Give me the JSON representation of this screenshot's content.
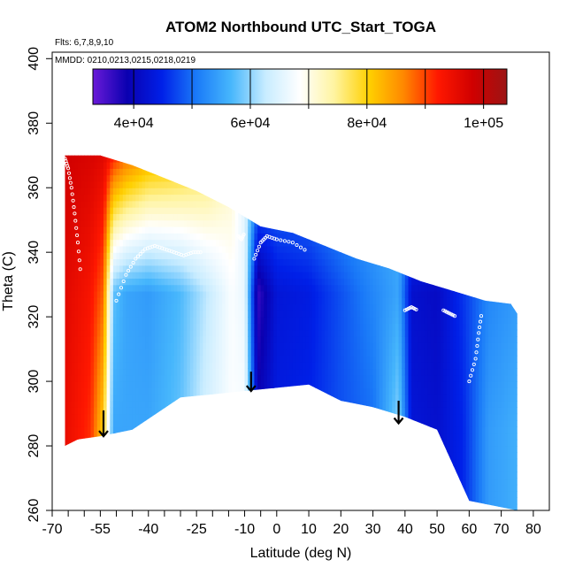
{
  "chart_data": {
    "type": "heatmap",
    "title": "ATOM2 Northbound UTC_Start_TOGA",
    "flights_note": "Flts: 6,7,8,9,10",
    "dates_note": "MMDD: 0210,0213,0215,0218,0219",
    "xlabel": "Latitude (deg N)",
    "ylabel": "Theta (C)",
    "xlim": [
      -70,
      85
    ],
    "ylim": [
      260,
      402
    ],
    "x_ticks": [
      {
        "value": -70,
        "label": "-70"
      },
      {
        "value": -55,
        "label": "-55"
      },
      {
        "value": -40,
        "label": "-40"
      },
      {
        "value": -25,
        "label": "-25"
      },
      {
        "value": -10,
        "label": "-10"
      },
      {
        "value": 0,
        "label": "0"
      },
      {
        "value": 10,
        "label": "10"
      },
      {
        "value": 20,
        "label": "20"
      },
      {
        "value": 30,
        "label": "30"
      },
      {
        "value": 40,
        "label": "40"
      },
      {
        "value": 50,
        "label": "50"
      },
      {
        "value": 60,
        "label": "60"
      },
      {
        "value": 70,
        "label": "70"
      },
      {
        "value": 80,
        "label": "80"
      }
    ],
    "x_minor_ticks": [
      -65,
      -60,
      -50,
      -45,
      -35,
      -30,
      -20,
      -15,
      -5
    ],
    "y_ticks": [
      {
        "value": 260,
        "label": "260"
      },
      {
        "value": 280,
        "label": "280"
      },
      {
        "value": 300,
        "label": "300"
      },
      {
        "value": 320,
        "label": "320"
      },
      {
        "value": 340,
        "label": "340"
      },
      {
        "value": 360,
        "label": "360"
      },
      {
        "value": 380,
        "label": "380"
      },
      {
        "value": 400,
        "label": "400"
      }
    ],
    "colorbar": {
      "min": 33000,
      "max": 104000,
      "ticks": [
        {
          "value": 40000,
          "label": "4e+04"
        },
        {
          "value": 60000,
          "label": "6e+04"
        },
        {
          "value": 80000,
          "label": "8e+04"
        },
        {
          "value": 100000,
          "label": "1e+05"
        }
      ],
      "separators": [
        40000,
        50000,
        60000,
        70000,
        80000,
        90000,
        100000
      ],
      "stops": [
        "#6a1ad8",
        "#0a00b0",
        "#0020e8",
        "#1a7af8",
        "#46b6fc",
        "#c8ecff",
        "#ffffff",
        "#fff4a0",
        "#ffd000",
        "#ff8800",
        "#ff1800",
        "#d00000",
        "#9c1414"
      ]
    },
    "field": {
      "description": "Contour of UTC_Start_TOGA vs latitude and potential temperature",
      "top_boundary": [
        [
          -66,
          370
        ],
        [
          -55,
          370
        ],
        [
          -45,
          367
        ],
        [
          -35,
          363
        ],
        [
          -25,
          359
        ],
        [
          -15,
          354
        ],
        [
          -5,
          348
        ],
        [
          5,
          346
        ],
        [
          15,
          342
        ],
        [
          25,
          338
        ],
        [
          35,
          335
        ],
        [
          45,
          331
        ],
        [
          55,
          328
        ],
        [
          65,
          325
        ],
        [
          73,
          324
        ],
        [
          75,
          321
        ]
      ],
      "bottom_boundary": [
        [
          75,
          260
        ],
        [
          65,
          262
        ],
        [
          60,
          263
        ],
        [
          50,
          285
        ],
        [
          40,
          289
        ],
        [
          30,
          292
        ],
        [
          20,
          294
        ],
        [
          10,
          299
        ],
        [
          0,
          298
        ],
        [
          -10,
          297
        ],
        [
          -20,
          296
        ],
        [
          -30,
          295
        ],
        [
          -45,
          285
        ],
        [
          -55,
          283
        ],
        [
          -62,
          282
        ],
        [
          -66,
          280
        ]
      ],
      "columns": [
        {
          "lat": -66,
          "top": 98000,
          "mid": 96000,
          "bot": 95000
        },
        {
          "lat": -58,
          "top": 97000,
          "mid": 93000,
          "bot": 91000
        },
        {
          "lat": -54,
          "top": 96000,
          "mid": 88000,
          "bot": 80000
        },
        {
          "lat": -51,
          "top": 92000,
          "mid": 58000,
          "bot": 55000
        },
        {
          "lat": -47,
          "top": 88000,
          "mid": 55000,
          "bot": 55000
        },
        {
          "lat": -40,
          "top": 84000,
          "mid": 54000,
          "bot": 55000
        },
        {
          "lat": -30,
          "top": 82000,
          "mid": 57000,
          "bot": 58000
        },
        {
          "lat": -22,
          "top": 79000,
          "mid": 62000,
          "bot": 64000
        },
        {
          "lat": -14,
          "top": 72000,
          "mid": 68000,
          "bot": 68000
        },
        {
          "lat": -10,
          "top": 65000,
          "mid": 66000,
          "bot": 68000
        },
        {
          "lat": -6,
          "top": 56000,
          "mid": 36000,
          "bot": 40000
        },
        {
          "lat": 0,
          "top": 52000,
          "mid": 43000,
          "bot": 44000
        },
        {
          "lat": 10,
          "top": 53000,
          "mid": 44000,
          "bot": 45000
        },
        {
          "lat": 20,
          "top": 55000,
          "mid": 48000,
          "bot": 48000
        },
        {
          "lat": 30,
          "top": 56000,
          "mid": 52000,
          "bot": 50000
        },
        {
          "lat": 38,
          "top": 56000,
          "mid": 55000,
          "bot": 60000
        },
        {
          "lat": 42,
          "top": 52000,
          "mid": 42000,
          "bot": 43000
        },
        {
          "lat": 50,
          "top": 50000,
          "mid": 41000,
          "bot": 42000
        },
        {
          "lat": 58,
          "top": 54000,
          "mid": 46000,
          "bot": 45000
        },
        {
          "lat": 66,
          "top": 56000,
          "mid": 52000,
          "bot": 54000
        },
        {
          "lat": 75,
          "top": 55000,
          "mid": 54000,
          "bot": 56000
        }
      ]
    },
    "arrows": [
      {
        "x": -54,
        "y_from": 291,
        "y_to": 283
      },
      {
        "x": -8,
        "y_from": 303,
        "y_to": 297
      },
      {
        "x": 38,
        "y_from": 294,
        "y_to": 287
      }
    ],
    "sample_tracks": [
      {
        "x": [
          -66,
          -65,
          -64,
          -63,
          -62,
          -61
        ],
        "y": [
          369,
          366,
          360,
          352,
          343,
          332
        ]
      },
      {
        "x": [
          -50,
          -47,
          -44,
          -41,
          -38,
          -35,
          -32,
          -29,
          -26,
          -23
        ],
        "y": [
          325,
          333,
          338,
          341,
          342,
          341,
          340,
          339,
          340,
          340
        ]
      },
      {
        "x": [
          -12,
          -11,
          -10
        ],
        "y": [
          345,
          344,
          346
        ]
      },
      {
        "x": [
          -7,
          -5,
          -3,
          0,
          5,
          10
        ],
        "y": [
          338,
          343,
          345,
          344,
          343,
          340
        ]
      },
      {
        "x": [
          40,
          42,
          44
        ],
        "y": [
          322,
          323,
          322
        ]
      },
      {
        "x": [
          52,
          54,
          56
        ],
        "y": [
          322,
          321,
          320
        ]
      },
      {
        "x": [
          60,
          62,
          63,
          64
        ],
        "y": [
          300,
          307,
          315,
          322
        ]
      }
    ]
  }
}
